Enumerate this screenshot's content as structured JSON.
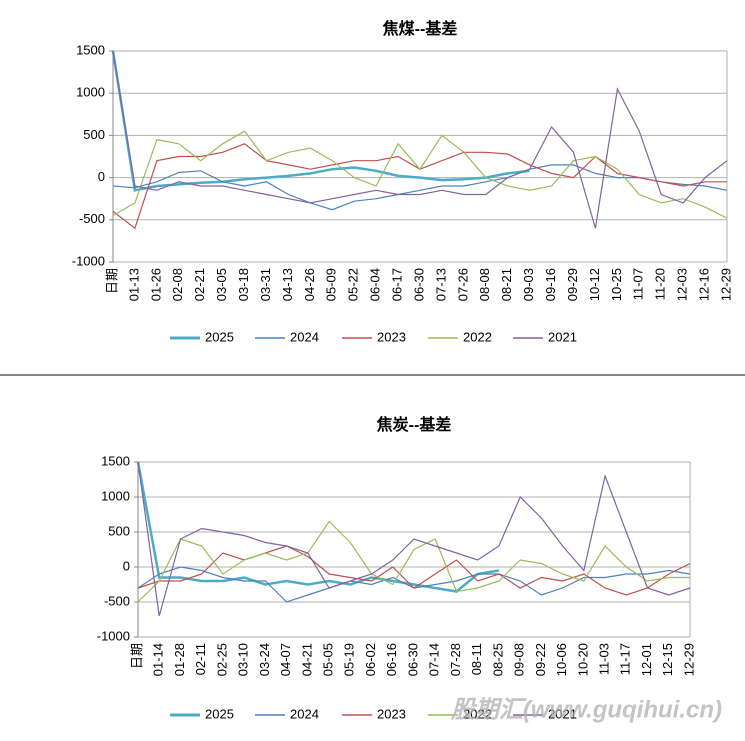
{
  "chart_data": [
    {
      "type": "line",
      "title": "焦煤--基差",
      "categories": [
        "日期",
        "01-13",
        "01-26",
        "02-08",
        "02-21",
        "03-05",
        "03-18",
        "03-31",
        "04-13",
        "04-26",
        "05-09",
        "05-22",
        "06-04",
        "06-17",
        "06-30",
        "07-13",
        "07-26",
        "08-08",
        "08-21",
        "09-03",
        "09-16",
        "09-29",
        "10-12",
        "10-25",
        "11-07",
        "11-20",
        "12-03",
        "12-16",
        "12-29"
      ],
      "ylim": [
        -1000,
        1500
      ],
      "yticks": [
        -1000,
        -500,
        0,
        500,
        1000,
        1500
      ],
      "grid": true,
      "series": [
        {
          "name": "2025",
          "color": "#4bacc6",
          "values": [
            1500,
            -150,
            -100,
            -80,
            -60,
            -50,
            -20,
            0,
            20,
            50,
            100,
            120,
            80,
            20,
            0,
            -30,
            -20,
            0,
            50,
            80,
            null,
            null,
            null,
            null,
            null,
            null,
            null,
            null,
            null
          ]
        },
        {
          "name": "2024",
          "color": "#4f81bd",
          "values": [
            -100,
            -120,
            -50,
            60,
            80,
            -50,
            -100,
            -50,
            -200,
            -300,
            -380,
            -280,
            -250,
            -200,
            -150,
            -100,
            -100,
            -50,
            0,
            100,
            150,
            150,
            50,
            0,
            0,
            -50,
            -80,
            -100,
            -150
          ]
        },
        {
          "name": "2023",
          "color": "#c0504d",
          "values": [
            -400,
            -600,
            200,
            250,
            250,
            300,
            400,
            200,
            150,
            100,
            150,
            200,
            200,
            250,
            100,
            200,
            300,
            300,
            280,
            150,
            50,
            0,
            250,
            50,
            0,
            -50,
            -100,
            -50,
            -50
          ]
        },
        {
          "name": "2022",
          "color": "#9bbb59",
          "values": [
            -450,
            -300,
            450,
            400,
            200,
            400,
            550,
            200,
            300,
            350,
            200,
            0,
            -100,
            400,
            100,
            500,
            300,
            0,
            -100,
            -150,
            -100,
            200,
            250,
            100,
            -200,
            -300,
            -250,
            -350,
            -480
          ]
        },
        {
          "name": "2021",
          "color": "#8064a2",
          "values": [
            1500,
            -100,
            -150,
            -50,
            -100,
            -100,
            -150,
            -200,
            -250,
            -300,
            -250,
            -200,
            -150,
            -200,
            -200,
            -150,
            -200,
            -200,
            0,
            100,
            600,
            300,
            -600,
            1050,
            550,
            -200,
            -300,
            0,
            200
          ]
        }
      ]
    },
    {
      "type": "line",
      "title": "焦炭--基差",
      "categories": [
        "日期",
        "01-14",
        "01-28",
        "02-11",
        "02-25",
        "03-10",
        "03-24",
        "04-07",
        "04-21",
        "05-05",
        "05-19",
        "06-02",
        "06-16",
        "06-30",
        "07-14",
        "07-28",
        "08-11",
        "08-25",
        "09-08",
        "09-22",
        "10-06",
        "10-20",
        "11-03",
        "11-17",
        "12-01",
        "12-15",
        "12-29"
      ],
      "ylim": [
        -1000,
        1500
      ],
      "yticks": [
        -1000,
        -500,
        0,
        500,
        1000,
        1500
      ],
      "grid": true,
      "series": [
        {
          "name": "2025",
          "color": "#4bacc6",
          "values": [
            1500,
            -150,
            -150,
            -200,
            -200,
            -150,
            -250,
            -200,
            -250,
            -200,
            -250,
            -150,
            -200,
            -250,
            -300,
            -350,
            -100,
            -50,
            null,
            null,
            null,
            null,
            null,
            null,
            null,
            null,
            null
          ]
        },
        {
          "name": "2024",
          "color": "#4f81bd",
          "values": [
            -300,
            -100,
            0,
            -50,
            -150,
            -200,
            -200,
            -500,
            -400,
            -300,
            -200,
            -250,
            -150,
            -300,
            -250,
            -200,
            -100,
            -100,
            -200,
            -400,
            -300,
            -150,
            -150,
            -100,
            -100,
            -50,
            -100
          ]
        },
        {
          "name": "2023",
          "color": "#c0504d",
          "values": [
            -300,
            -200,
            -200,
            -100,
            200,
            100,
            200,
            300,
            150,
            -100,
            -150,
            -200,
            0,
            -300,
            -100,
            100,
            -200,
            -100,
            -300,
            -150,
            -200,
            -100,
            -300,
            -400,
            -300,
            -100,
            50
          ]
        },
        {
          "name": "2022",
          "color": "#9bbb59",
          "values": [
            -500,
            -200,
            400,
            300,
            -100,
            100,
            200,
            100,
            200,
            650,
            350,
            -100,
            -250,
            250,
            400,
            -350,
            -300,
            -200,
            100,
            50,
            -100,
            -200,
            300,
            0,
            -200,
            -150,
            -150
          ]
        },
        {
          "name": "2021",
          "color": "#8064a2",
          "values": [
            1500,
            -700,
            400,
            550,
            500,
            450,
            350,
            300,
            200,
            -300,
            -200,
            -100,
            100,
            400,
            300,
            200,
            100,
            300,
            1000,
            700,
            300,
            -50,
            1300,
            500,
            -300,
            -400,
            -300
          ]
        }
      ]
    }
  ],
  "watermark": "股期汇(www.guqihui.cn)"
}
